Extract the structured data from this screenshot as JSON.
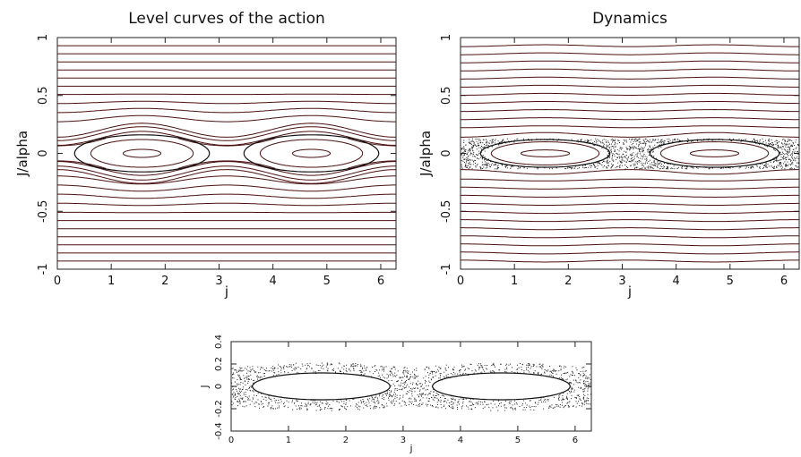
{
  "chart_data": [
    {
      "type": "line",
      "title": "Level curves of the action",
      "xlabel": "j",
      "ylabel": "J/alpha",
      "xlim": [
        0,
        6.283
      ],
      "ylim": [
        -1,
        1
      ],
      "xticks": [
        "0",
        "1",
        "2",
        "3",
        "4",
        "5",
        "6"
      ],
      "yticks": [
        "-1",
        "-0.5",
        "0",
        "0.5",
        "1"
      ],
      "grid": false,
      "open_levels": [
        -0.93,
        -0.86,
        -0.79,
        -0.72,
        -0.65,
        -0.58,
        -0.51,
        -0.44,
        -0.37,
        -0.3,
        -0.23,
        0.3,
        0.37,
        0.44,
        0.51,
        0.58,
        0.65,
        0.72,
        0.79,
        0.86,
        0.93
      ],
      "near_separatrix_levels": [
        -0.2,
        -0.17,
        -0.13,
        0.13,
        0.17,
        0.2
      ],
      "islands": {
        "centers_x": [
          1.5708,
          4.7124
        ],
        "half_widths_J": [
          0.16,
          0.12,
          0.035
        ]
      }
    },
    {
      "type": "scatter",
      "title": "Dynamics",
      "xlabel": "j",
      "ylabel": "J/alpha",
      "xlim": [
        0,
        6.283
      ],
      "ylim": [
        -1,
        1
      ],
      "xticks": [
        "0",
        "1",
        "2",
        "3",
        "4",
        "5",
        "6"
      ],
      "yticks": [
        "-1",
        "-0.5",
        "0",
        "0.5",
        "1"
      ],
      "grid": false,
      "open_levels": [
        -0.93,
        -0.86,
        -0.79,
        -0.72,
        -0.65,
        -0.58,
        -0.51,
        -0.44,
        -0.37,
        -0.3,
        -0.23,
        -0.16,
        0.16,
        0.23,
        0.3,
        0.37,
        0.44,
        0.51,
        0.58,
        0.65,
        0.72,
        0.79,
        0.86,
        0.93
      ],
      "chaotic_band_J": [
        -0.13,
        0.13
      ],
      "islands": {
        "centers_x": [
          1.5708,
          4.7124
        ],
        "half_widths_J": [
          0.12,
          0.1,
          0.03
        ]
      }
    },
    {
      "type": "scatter",
      "title": "",
      "xlabel": "j",
      "ylabel": "J",
      "xlim": [
        0,
        6.283
      ],
      "ylim": [
        -0.4,
        0.4
      ],
      "xticks": [
        "0",
        "1",
        "2",
        "3",
        "4",
        "5",
        "6"
      ],
      "yticks": [
        "-0.4",
        "-0.2",
        "0",
        "0.2",
        "0.4"
      ],
      "grid": false,
      "chaotic_band_J": [
        -0.17,
        0.17
      ],
      "islands": {
        "centers_x": [
          1.5708,
          4.7124
        ],
        "half_widths_J": [
          0.12
        ]
      }
    }
  ]
}
